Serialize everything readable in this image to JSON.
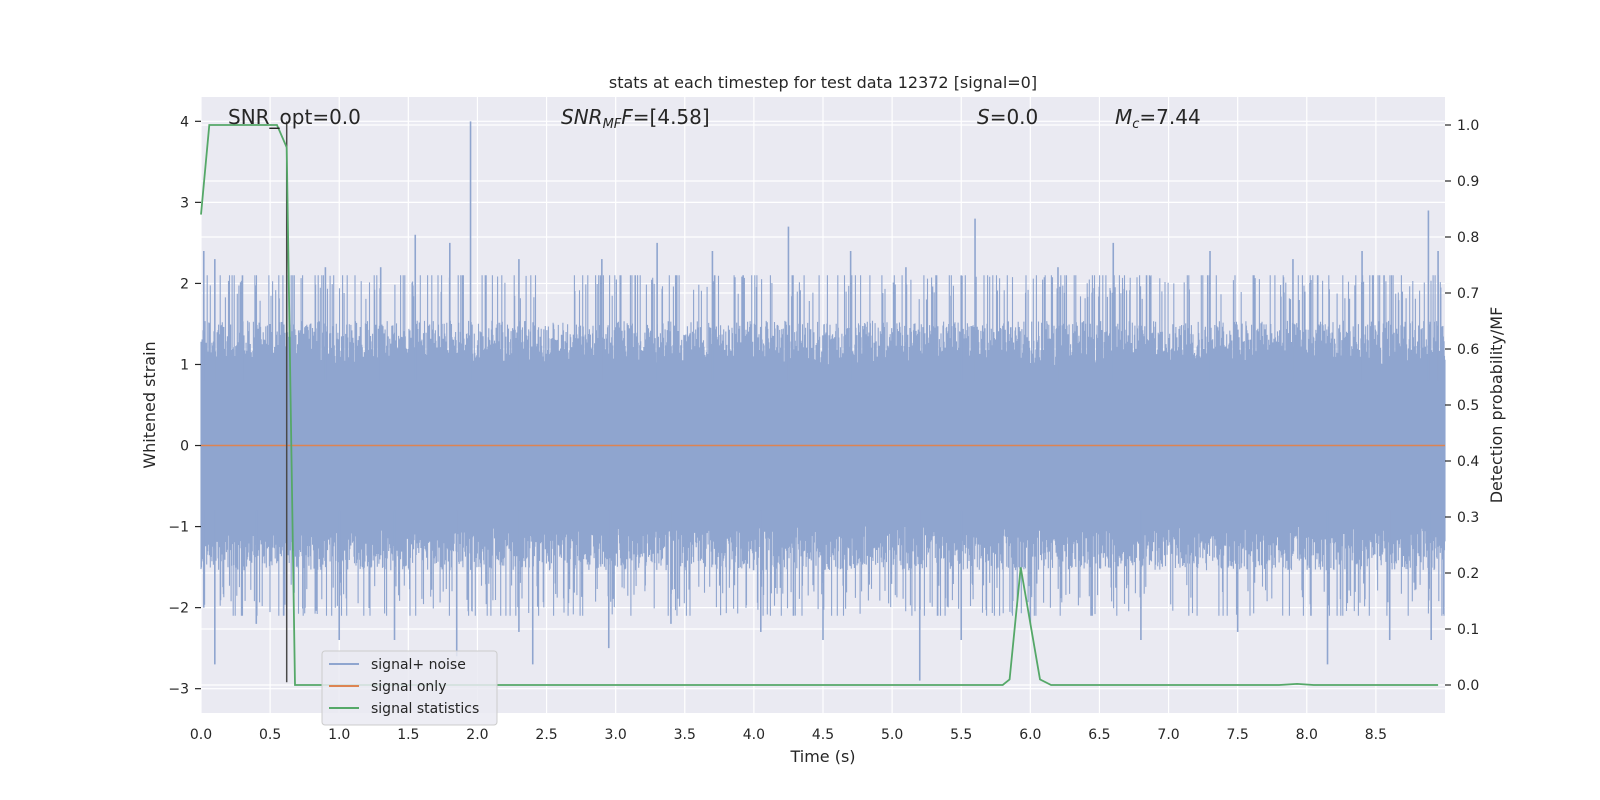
{
  "chart_data": {
    "type": "line",
    "title": "stats at each timestep for test data 12372 [signal=0]",
    "xlabel": "Time (s)",
    "ylabel": "Whitened strain",
    "ylabel_right": "Detection probability/MF",
    "xlim": [
      0.0,
      9.0
    ],
    "ylim": [
      -3.3,
      4.3
    ],
    "ylim_right": [
      -0.05,
      1.05
    ],
    "xticks": [
      "0.0",
      "0.5",
      "1.0",
      "1.5",
      "2.0",
      "2.5",
      "3.0",
      "3.5",
      "4.0",
      "4.5",
      "5.0",
      "5.5",
      "6.0",
      "6.5",
      "7.0",
      "7.5",
      "8.0",
      "8.5"
    ],
    "yticks": [
      "−3",
      "−2",
      "−1",
      "0",
      "1",
      "2",
      "3",
      "4"
    ],
    "yticks_right": [
      "0.0",
      "0.1",
      "0.2",
      "0.3",
      "0.4",
      "0.5",
      "0.6",
      "0.7",
      "0.8",
      "0.9",
      "1.0"
    ],
    "annotations": {
      "snr_opt": "SNR_opt=0.0",
      "snr_mf_pre": "SNR",
      "snr_mf_sub": "MF",
      "snr_mf_post": "=[4.58]",
      "s_italic": "S",
      "s_post": "=0.0",
      "mc_italic": "M",
      "mc_sub": "c",
      "mc_post": "=7.44"
    },
    "marker_line_x": 0.62,
    "legend": {
      "placement": "lower-left",
      "entries": [
        "signal+ noise",
        "signal only",
        "signal statistics"
      ]
    },
    "colors": {
      "noise": "#8fa5cf",
      "signal_only": "#dd8452",
      "statistics": "#55a868",
      "background": "#eaeaf2",
      "grid": "#ffffff",
      "marker_line": "#4a4a4a"
    },
    "series": [
      {
        "name": "signal+ noise",
        "axis": "left",
        "noise_band": {
          "x_start": 0.0,
          "x_end": 9.0,
          "typical_abs": 1.1
        },
        "peaks": [
          {
            "x": 0.02,
            "y": 2.4
          },
          {
            "x": 0.1,
            "y": 2.3
          },
          {
            "x": 0.3,
            "y": 2.1
          },
          {
            "x": 0.9,
            "y": 2.2
          },
          {
            "x": 1.3,
            "y": 2.2
          },
          {
            "x": 1.55,
            "y": 2.6
          },
          {
            "x": 1.8,
            "y": 2.5
          },
          {
            "x": 1.95,
            "y": 4.0
          },
          {
            "x": 2.3,
            "y": 2.3
          },
          {
            "x": 2.9,
            "y": 2.3
          },
          {
            "x": 3.3,
            "y": 2.5
          },
          {
            "x": 3.7,
            "y": 2.4
          },
          {
            "x": 4.25,
            "y": 2.7
          },
          {
            "x": 4.7,
            "y": 2.4
          },
          {
            "x": 5.1,
            "y": 2.2
          },
          {
            "x": 5.5,
            "y": 2.1
          },
          {
            "x": 5.6,
            "y": 2.8
          },
          {
            "x": 6.2,
            "y": 2.2
          },
          {
            "x": 6.6,
            "y": 2.5
          },
          {
            "x": 7.3,
            "y": 2.4
          },
          {
            "x": 7.9,
            "y": 2.3
          },
          {
            "x": 8.4,
            "y": 2.4
          },
          {
            "x": 8.88,
            "y": 2.9
          },
          {
            "x": 8.95,
            "y": 2.4
          }
        ],
        "troughs": [
          {
            "x": 0.02,
            "y": -2.0
          },
          {
            "x": 0.1,
            "y": -2.7
          },
          {
            "x": 0.4,
            "y": -2.2
          },
          {
            "x": 1.0,
            "y": -2.4
          },
          {
            "x": 1.4,
            "y": -2.4
          },
          {
            "x": 1.85,
            "y": -2.6
          },
          {
            "x": 2.3,
            "y": -2.3
          },
          {
            "x": 2.4,
            "y": -2.7
          },
          {
            "x": 2.95,
            "y": -2.5
          },
          {
            "x": 3.4,
            "y": -2.2
          },
          {
            "x": 4.05,
            "y": -2.3
          },
          {
            "x": 4.5,
            "y": -2.4
          },
          {
            "x": 5.2,
            "y": -2.9
          },
          {
            "x": 5.5,
            "y": -2.4
          },
          {
            "x": 6.0,
            "y": -2.2
          },
          {
            "x": 6.8,
            "y": -2.4
          },
          {
            "x": 7.5,
            "y": -2.3
          },
          {
            "x": 8.15,
            "y": -2.7
          },
          {
            "x": 8.6,
            "y": -2.4
          },
          {
            "x": 8.9,
            "y": -2.4
          }
        ]
      },
      {
        "name": "signal only",
        "axis": "left",
        "x": [
          0.0,
          9.0
        ],
        "y": [
          0.0,
          0.0
        ]
      },
      {
        "name": "signal statistics",
        "axis": "right",
        "x": [
          0.0,
          0.06,
          0.1,
          0.5,
          0.55,
          0.62,
          0.68,
          5.8,
          5.85,
          5.93,
          6.07,
          6.15,
          7.8,
          7.93,
          8.05,
          8.95
        ],
        "y": [
          0.84,
          1.0,
          1.0,
          1.0,
          1.0,
          0.96,
          0.0,
          0.0,
          0.01,
          0.21,
          0.01,
          0.0,
          0.0,
          0.002,
          0.0,
          0.0
        ]
      }
    ]
  }
}
